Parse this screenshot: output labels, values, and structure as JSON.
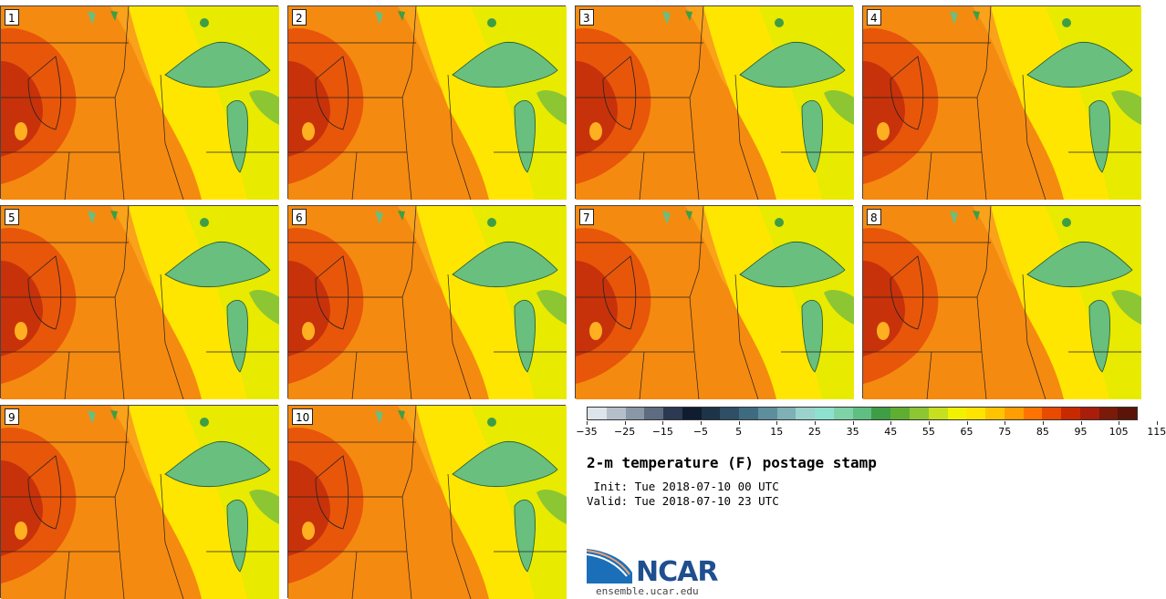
{
  "panels": [
    {
      "label": "1"
    },
    {
      "label": "2"
    },
    {
      "label": "3"
    },
    {
      "label": "4"
    },
    {
      "label": "5"
    },
    {
      "label": "6"
    },
    {
      "label": "7"
    },
    {
      "label": "8"
    },
    {
      "label": "9"
    },
    {
      "label": "10"
    }
  ],
  "colorbar": {
    "colors": [
      "#dde4ea",
      "#b5bfca",
      "#8a97a6",
      "#5d6c80",
      "#2b3a52",
      "#101c30",
      "#1d3347",
      "#2f4f64",
      "#3f6b80",
      "#5d8e9c",
      "#7eb0b5",
      "#9ad3cc",
      "#8ee0cf",
      "#7ed2a6",
      "#5fbf82",
      "#3e9e45",
      "#5fae32",
      "#8cc633",
      "#c6e01f",
      "#f2f200",
      "#ffe400",
      "#ffc400",
      "#ff9e00",
      "#ff7400",
      "#e84a00",
      "#c82a00",
      "#a81e0a",
      "#7a1a08",
      "#5a1508"
    ],
    "tick_labels": [
      "−35",
      "−25",
      "−15",
      "−5",
      "5",
      "15",
      "25",
      "35",
      "45",
      "55",
      "65",
      "75",
      "85",
      "95",
      "105",
      "115"
    ]
  },
  "title": "2-m temperature (F) postage stamp",
  "init_line": " Init: Tue 2018-07-10 00 UTC",
  "valid_line": "Valid: Tue 2018-07-10 23 UTC",
  "logo": {
    "text": "NCAR",
    "url": "ensemble.ucar.edu"
  }
}
